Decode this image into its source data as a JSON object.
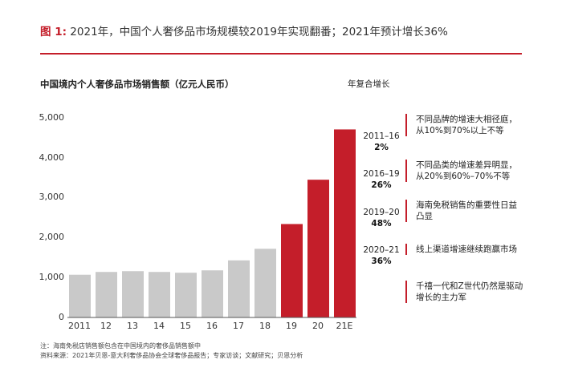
{
  "figure": {
    "label": "图 1:",
    "title": "2021年，中国个人奢侈品市场规模较2019年实现翻番；2021年预计增长36%"
  },
  "chart_data": {
    "type": "bar",
    "title": "中国境内个人奢侈品市场销售额（亿元人民币）",
    "categories": [
      "2011",
      "12",
      "13",
      "14",
      "15",
      "16",
      "17",
      "18",
      "19",
      "20",
      "21E"
    ],
    "values": [
      1070,
      1140,
      1160,
      1140,
      1120,
      1180,
      1430,
      1720,
      2340,
      3450,
      4710
    ],
    "bar_colors": [
      "#c9c9c9",
      "#c9c9c9",
      "#c9c9c9",
      "#c9c9c9",
      "#c9c9c9",
      "#c9c9c9",
      "#c9c9c9",
      "#c9c9c9",
      "#c41e2a",
      "#c41e2a",
      "#c41e2a"
    ],
    "ylim": [
      0,
      5000
    ],
    "yticks": [
      "0",
      "1,000",
      "2,000",
      "3,000",
      "4,000",
      "5,000"
    ],
    "xlabel": "",
    "ylabel": "",
    "grid": false
  },
  "cagr": {
    "header": "年复合增长",
    "items": [
      {
        "period": "2011–16",
        "rate": "2%"
      },
      {
        "period": "2016–19",
        "rate": "26%"
      },
      {
        "period": "2019–20",
        "rate": "48%"
      },
      {
        "period": "2020–21",
        "rate": "36%"
      }
    ]
  },
  "notes": [
    {
      "line1": "不同品牌的增速大相径庭，",
      "line2": "从10%到70%以上不等"
    },
    {
      "line1": "不同品类的增速差异明显，",
      "line2": "从20%到60%–70%不等"
    },
    {
      "line1": "海南免税销售的重要性日益",
      "line2": "凸显"
    },
    {
      "line1": "线上渠道增速继续跑赢市场",
      "line2": ""
    },
    {
      "line1": "千禧一代和Z世代仍然是驱动",
      "line2": "增长的主力军"
    }
  ],
  "footnotes": {
    "note": "注：海南免税店销售额包含在中国境内的奢侈品销售额中",
    "source": "资料来源：2021年贝恩-意大利奢侈品协会全球奢侈品报告；专家访谈；文献研究；贝恩分析"
  },
  "colors": {
    "accent": "#c41e2a",
    "bar_gray": "#c9c9c9"
  }
}
